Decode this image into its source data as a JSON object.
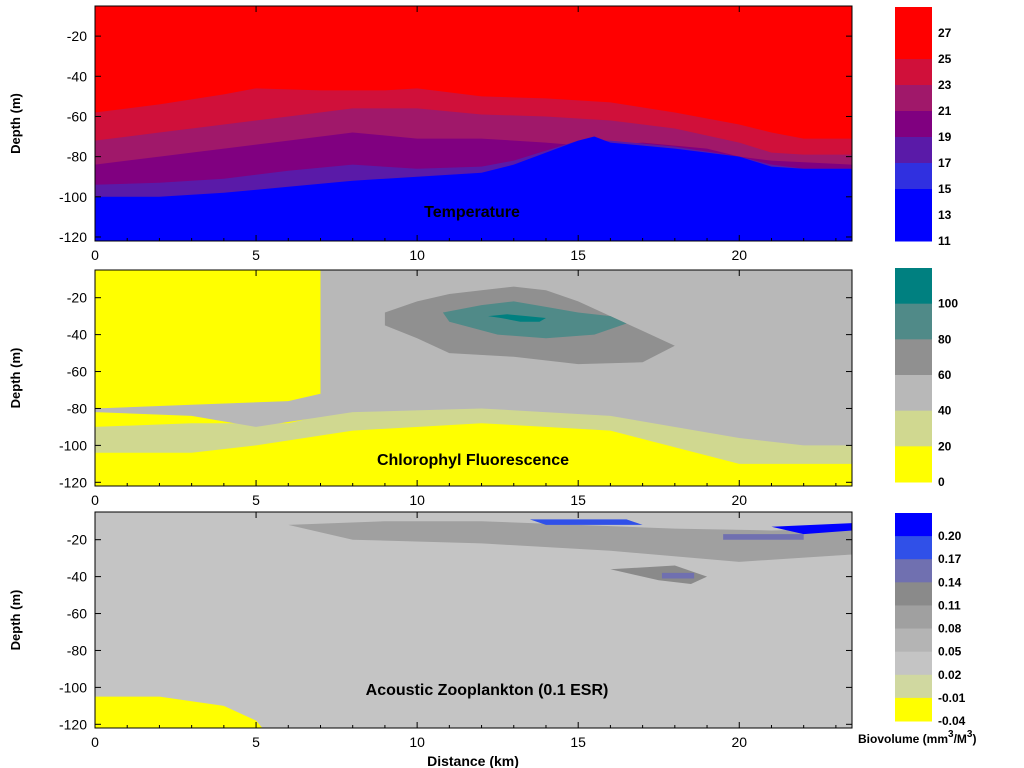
{
  "chart_data": [
    {
      "type": "heatmap",
      "title": "Temperature",
      "ylabel": "Depth (m)",
      "xlabel": "",
      "xlim": [
        0,
        23.5
      ],
      "ylim": [
        -122,
        -5
      ],
      "xticks": [
        0,
        5,
        10,
        15,
        20
      ],
      "yticks": [
        -20,
        -40,
        -60,
        -80,
        -100,
        -120
      ],
      "colorbar": {
        "levels": [
          "27",
          "25",
          "23",
          "21",
          "19",
          "17",
          "15",
          "13",
          "11"
        ],
        "colors": [
          "#ff0000",
          "#ff0000",
          "#d0103a",
          "#a0186a",
          "#800080",
          "#5a1aa8",
          "#3030e0",
          "#0000ff",
          "#0000ff"
        ]
      },
      "contours": [
        {
          "level": 25,
          "color": "#d0103a",
          "x": [
            0,
            2,
            4,
            5,
            7,
            9,
            10,
            12,
            14,
            16,
            18,
            20,
            21,
            22,
            23.5
          ],
          "y": [
            -58,
            -54,
            -49,
            -46,
            -47,
            -47,
            -46,
            -50,
            -51,
            -53,
            -58,
            -64,
            -68,
            -71,
            -71
          ]
        },
        {
          "level": 23,
          "color": "#a0186a",
          "x": [
            0,
            2,
            4,
            6,
            8,
            10,
            12,
            14,
            16,
            18,
            20,
            21,
            22,
            23.5
          ],
          "y": [
            -72,
            -68,
            -64,
            -60,
            -56,
            -56,
            -59,
            -60,
            -62,
            -66,
            -73,
            -78,
            -79,
            -79
          ]
        },
        {
          "level": 21,
          "color": "#800080",
          "x": [
            0,
            2,
            4,
            6,
            8,
            10,
            12,
            14,
            15.5,
            17,
            19,
            20,
            21,
            23.5
          ],
          "y": [
            -84,
            -80,
            -76,
            -72,
            -68,
            -71,
            -71,
            -73,
            -75,
            -73,
            -76,
            -80,
            -82,
            -84
          ]
        },
        {
          "level": 19,
          "color": "#5a1aa8",
          "x": [
            0,
            2,
            4,
            6,
            8,
            10,
            12,
            13,
            14,
            15,
            16,
            18,
            20,
            21,
            22,
            23.5
          ],
          "y": [
            -94,
            -93,
            -91,
            -87,
            -84,
            -86,
            -85,
            -82,
            -77,
            -72,
            -72,
            -75,
            -80,
            -84,
            -86,
            -86
          ]
        },
        {
          "level": 15,
          "color": "#0000ff",
          "x": [
            0,
            2,
            4,
            6,
            8,
            10,
            12,
            13,
            14,
            15,
            15.5,
            16,
            18,
            20,
            21,
            22,
            23.5
          ],
          "y": [
            -100,
            -100,
            -98,
            -95,
            -92,
            -90,
            -88,
            -84,
            -78,
            -72,
            -70,
            -73,
            -76,
            -80,
            -85,
            -86,
            -86
          ]
        }
      ]
    },
    {
      "type": "heatmap",
      "title": "Chlorophyl Fluorescence",
      "ylabel": "Depth (m)",
      "xlabel": "",
      "xlim": [
        0,
        23.5
      ],
      "ylim": [
        -122,
        -5
      ],
      "xticks": [
        0,
        5,
        10,
        15,
        20
      ],
      "yticks": [
        -20,
        -40,
        -60,
        -80,
        -100,
        -120
      ],
      "colorbar": {
        "levels": [
          "100",
          "80",
          "60",
          "40",
          "20",
          "0"
        ],
        "colors": [
          "#008080",
          "#508a88",
          "#909090",
          "#b8b8b8",
          "#d0d890",
          "#ffff00"
        ]
      },
      "contours": [
        {
          "level": 20,
          "color": "#d0d890",
          "x": [
            0,
            3,
            6,
            7,
            7,
            9,
            12,
            16,
            20,
            22,
            23.5,
            23.5,
            20,
            16,
            12,
            8,
            5,
            3,
            0
          ],
          "y": [
            -90,
            -88,
            -88,
            -84,
            -5,
            -5,
            -5,
            -5,
            -5,
            -5,
            -5,
            -110,
            -110,
            -92,
            -88,
            -92,
            -100,
            -104,
            -104
          ]
        },
        {
          "level": 40,
          "color": "#b8b8b8",
          "x": [
            0,
            3,
            6,
            7,
            7,
            9,
            12,
            16,
            20,
            22,
            23.5,
            23.5,
            22,
            20,
            16,
            12,
            8,
            5,
            3,
            0
          ],
          "y": [
            -80,
            -78,
            -76,
            -72,
            -5,
            -5,
            -5,
            -5,
            -5,
            -5,
            -5,
            -100,
            -100,
            -96,
            -84,
            -80,
            -82,
            -90,
            -84,
            -82
          ]
        },
        {
          "level": 60,
          "color": "#909090",
          "x": [
            9,
            10,
            11,
            12,
            13,
            14,
            15,
            16,
            17,
            18,
            17,
            15,
            13,
            11,
            10,
            9
          ],
          "y": [
            -28,
            -22,
            -18,
            -16,
            -14,
            -16,
            -22,
            -30,
            -38,
            -46,
            -55,
            -56,
            -52,
            -50,
            -42,
            -35
          ]
        },
        {
          "level": 80,
          "color": "#508a88",
          "x": [
            10.8,
            12,
            13,
            14,
            15,
            16,
            16.5,
            15.5,
            14,
            12.5,
            11
          ],
          "y": [
            -28,
            -24,
            -22,
            -25,
            -28,
            -30,
            -34,
            -40,
            -42,
            -40,
            -33
          ]
        },
        {
          "level": 100,
          "color": "#008080",
          "x": [
            12.2,
            12.8,
            13.4,
            14,
            13.8,
            13.2,
            12.6
          ],
          "y": [
            -30,
            -29,
            -30,
            -31,
            -33,
            -33,
            -31
          ]
        }
      ]
    },
    {
      "type": "heatmap",
      "title": "Acoustic Zooplankton (0.1 ESR)",
      "ylabel": "Depth (m)",
      "xlabel": "Distance (km)",
      "xlim": [
        0,
        23.5
      ],
      "ylim": [
        -122,
        -5
      ],
      "xticks": [
        0,
        5,
        10,
        15,
        20
      ],
      "yticks": [
        -20,
        -40,
        -60,
        -80,
        -100,
        -120
      ],
      "colorbar": {
        "levels": [
          "0.20",
          "0.17",
          "0.14",
          "0.11",
          "0.08",
          "0.05",
          "0.02",
          "-0.01",
          "-0.04"
        ],
        "colors": [
          "#0000ff",
          "#3050e8",
          "#7070b0",
          "#8a8a8a",
          "#a0a0a0",
          "#b4b4b4",
          "#c4c4c4",
          "#d0d8a0",
          "#ffff00"
        ],
        "label": "Biovolume (mm",
        "label_sup1": "3",
        "label_mid": "/M",
        "label_sup2": "3",
        "label_end": ")"
      },
      "contours": [
        {
          "level": -0.04,
          "color": "#ffff00",
          "x": [
            0,
            2,
            4,
            5,
            5.2,
            0
          ],
          "y": [
            -105,
            -105,
            -110,
            -118,
            -122,
            -122
          ]
        },
        {
          "level": 0.08,
          "color": "#a0a0a0",
          "x": [
            6,
            9,
            12,
            15,
            18,
            21,
            23.5,
            23.5,
            20,
            16,
            12,
            8
          ],
          "y": [
            -12,
            -10,
            -10,
            -12,
            -14,
            -15,
            -14,
            -28,
            -32,
            -26,
            -22,
            -20
          ]
        },
        {
          "level": 0.11,
          "color": "#8a8a8a",
          "x": [
            16,
            18,
            19,
            18.5,
            17.5
          ],
          "y": [
            -36,
            -34,
            -40,
            -44,
            -42
          ]
        },
        {
          "level": 0.17,
          "color": "#3050e8",
          "x": [
            13.5,
            16.5,
            17,
            14
          ],
          "y": [
            -9,
            -9,
            -12,
            -12
          ]
        },
        {
          "level": 0.2,
          "color": "#0000ff",
          "x": [
            21,
            23.5,
            23.5,
            22
          ],
          "y": [
            -13,
            -11,
            -15,
            -17
          ]
        },
        {
          "level": 0.14,
          "color": "#7070b0",
          "x": [
            17.6,
            18.6,
            18.6,
            17.6
          ],
          "y": [
            -38,
            -38,
            -41,
            -41
          ]
        },
        {
          "level": 0.14,
          "color": "#7070b0",
          "x": [
            19.5,
            22,
            22,
            19.5
          ],
          "y": [
            -17,
            -17,
            -20,
            -20
          ]
        }
      ]
    }
  ]
}
